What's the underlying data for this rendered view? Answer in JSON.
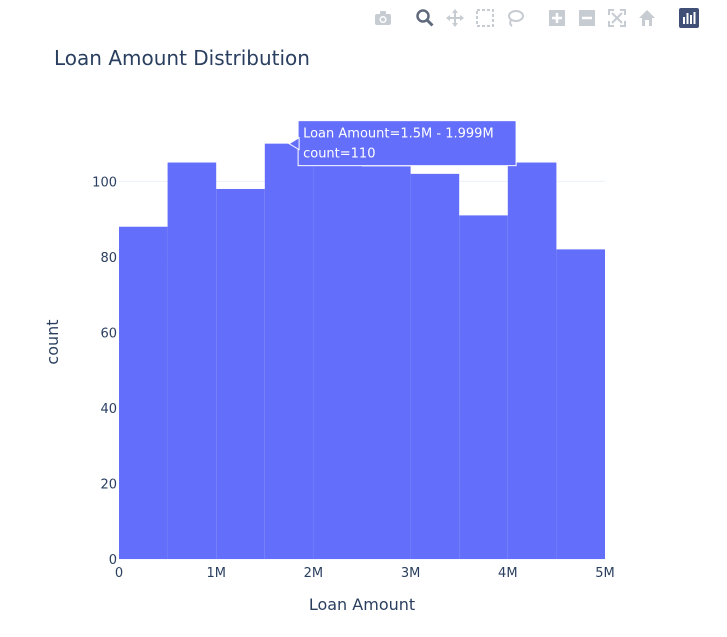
{
  "toolbar": {
    "buttons": [
      {
        "icon": "camera-icon",
        "label": "Download plot as a png"
      },
      {
        "icon": "zoom-icon",
        "label": "Zoom",
        "active": true
      },
      {
        "icon": "pan-icon",
        "label": "Pan"
      },
      {
        "icon": "box-select-icon",
        "label": "Box Select"
      },
      {
        "icon": "lasso-select-icon",
        "label": "Lasso Select"
      },
      {
        "icon": "zoom-in-icon",
        "label": "Zoom in"
      },
      {
        "icon": "zoom-out-icon",
        "label": "Zoom out"
      },
      {
        "icon": "autoscale-icon",
        "label": "Autoscale"
      },
      {
        "icon": "reset-axes-icon",
        "label": "Reset axes"
      },
      {
        "icon": "plotly-logo-icon",
        "label": "Produced with Plotly"
      }
    ]
  },
  "chart_data": {
    "type": "bar",
    "title": "Loan Amount Distribution",
    "xlabel": "Loan Amount",
    "ylabel": "count",
    "bin_edges": [
      0,
      500000,
      1000000,
      1500000,
      2000000,
      2500000,
      3000000,
      3500000,
      4000000,
      4500000,
      5000000
    ],
    "values": [
      88,
      105,
      98,
      110,
      108,
      104,
      102,
      91,
      105,
      82
    ],
    "xlim": [
      0,
      5000000
    ],
    "ylim": [
      0,
      116
    ],
    "x_ticks": [
      {
        "value": 0,
        "label": "0"
      },
      {
        "value": 1000000,
        "label": "1M"
      },
      {
        "value": 2000000,
        "label": "2M"
      },
      {
        "value": 3000000,
        "label": "3M"
      },
      {
        "value": 4000000,
        "label": "4M"
      },
      {
        "value": 5000000,
        "label": "5M"
      }
    ],
    "y_ticks": [
      0,
      20,
      40,
      60,
      80,
      100
    ],
    "grid": true,
    "bar_color": "#636efa",
    "hover": {
      "bin_index": 3,
      "line1": "Loan Amount=1.5M - 1.999M",
      "line2": "count=110"
    }
  }
}
